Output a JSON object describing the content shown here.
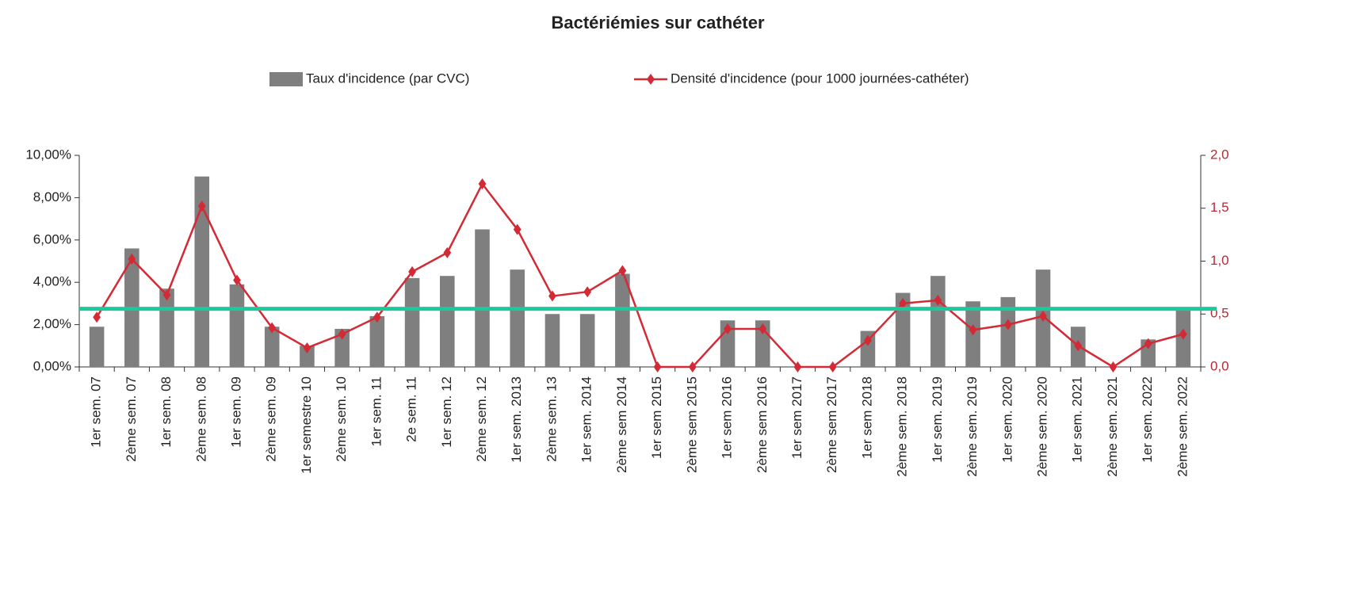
{
  "chart_data": {
    "type": "bar-line",
    "title": "Bactériémies sur cathéter",
    "categories": [
      "1er sem. 07",
      "2ème sem. 07",
      "1er sem. 08",
      "2ème sem. 08",
      "1er sem. 09",
      "2ème sem. 09",
      "1er semestre 10",
      "2ème sem. 10",
      "1er sem. 11",
      "2e sem. 11",
      "1er sem. 12",
      "2ème sem. 12",
      "1er sem. 2013",
      "2ème sem. 13",
      "1er sem. 2014",
      "2ème sem 2014",
      "1er sem 2015",
      "2ème sem 2015",
      "1er sem 2016",
      "2ème sem 2016",
      "1er sem 2017",
      "2ème sem 2017",
      "1er sem 2018",
      "2ème sem. 2018",
      "1er sem. 2019",
      "2ème sem. 2019",
      "1er sem. 2020",
      "2ème sem. 2020",
      "1er sem. 2021",
      "2ème sem. 2021",
      "1er sem. 2022",
      "2ème sem. 2022"
    ],
    "series": [
      {
        "name": "Taux d'incidence (par CVC)",
        "type": "bar",
        "color": "#7f7f7f",
        "axis": "y",
        "values": [
          1.9,
          5.6,
          3.7,
          9.0,
          3.9,
          1.9,
          1.0,
          1.8,
          2.4,
          4.2,
          4.3,
          6.5,
          4.6,
          2.5,
          2.5,
          4.4,
          0,
          0,
          2.2,
          2.2,
          0,
          0,
          1.7,
          3.5,
          4.3,
          3.1,
          3.3,
          4.6,
          1.9,
          0,
          1.3,
          2.8
        ]
      },
      {
        "name": "Densité d'incidence (pour 1000 journées-cathéter)",
        "type": "line",
        "color": "#d42a35",
        "axis": "y2",
        "values": [
          0.47,
          1.02,
          0.68,
          1.52,
          0.82,
          0.37,
          0.18,
          0.31,
          0.47,
          0.9,
          1.08,
          1.73,
          1.3,
          0.67,
          0.71,
          0.91,
          0,
          0,
          0.36,
          0.36,
          0,
          0,
          0.25,
          0.6,
          0.63,
          0.35,
          0.4,
          0.48,
          0.2,
          0,
          0.22,
          0.31
        ]
      }
    ],
    "ylim": [
      0,
      10
    ],
    "yticks": [
      {
        "value": 0,
        "label": "0,00%"
      },
      {
        "value": 2,
        "label": "2,00%"
      },
      {
        "value": 4,
        "label": "4,00%"
      },
      {
        "value": 6,
        "label": "6,00%"
      },
      {
        "value": 8,
        "label": "8,00%"
      },
      {
        "value": 10,
        "label": "10,00%"
      }
    ],
    "y2lim": [
      0,
      2
    ],
    "y2ticks": [
      {
        "value": 0,
        "label": "0,0"
      },
      {
        "value": 0.5,
        "label": "0,5"
      },
      {
        "value": 1,
        "label": "1,0"
      },
      {
        "value": 1.5,
        "label": "1,5"
      },
      {
        "value": 2,
        "label": "2,0"
      }
    ],
    "reference_line": {
      "value": 2.75,
      "color": "#1dc99a"
    },
    "legend": "top"
  }
}
